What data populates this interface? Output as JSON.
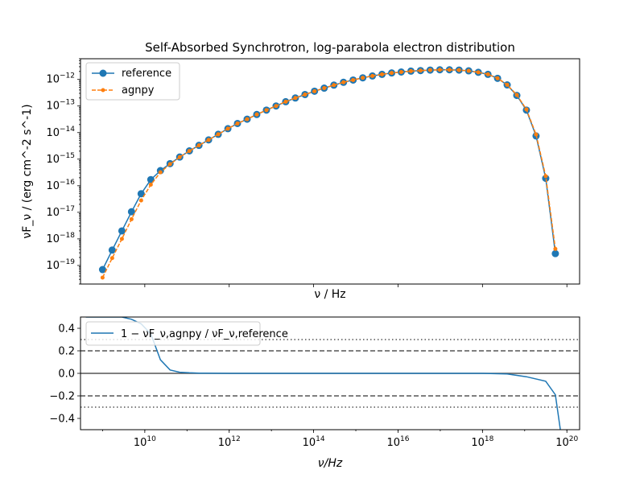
{
  "chart_data": [
    {
      "type": "line",
      "title": "Self-Absorbed Synchrotron, log-parabola electron distribution",
      "xlabel": "ν / Hz",
      "ylabel": "νF_ν / (erg cm^-2 s^-1)",
      "xscale": "log",
      "yscale": "log",
      "xlim": [
        300000000.0,
        2e+20
      ],
      "ylim": [
        2e-20,
        6e-12
      ],
      "grid": false,
      "legend_position": "upper-left",
      "x": [
        1000000000.0,
        1690000000.0,
        2870000000.0,
        4850000000.0,
        8200000000.0,
        13900000000.0,
        23500000000.0,
        39700000000.0,
        67200000000.0,
        114000000000.0,
        192000000000.0,
        325000000000.0,
        550000000000.0,
        931000000000.0,
        1570000000000.0,
        2660000000000.0,
        4500000000000.0,
        7620000000000.0,
        12900000000000.0,
        21800000000000.0,
        36900000000000.0,
        62400000000000.0,
        105000000000000.0,
        178000000000000.0,
        302000000000000.0,
        510000000000000.0,
        863000000000000.0,
        1460000000000000.0,
        2470000000000000.0,
        4170000000000000.0,
        7060000000000000.0,
        1.19e+16,
        2.02e+16,
        3.41e+16,
        5.77e+16,
        9.76e+16,
        1.65e+17,
        2.79e+17,
        4.71e+17,
        7.97e+17,
        1.35e+18,
        2.28e+18,
        3.85e+18,
        6.51e+18,
        1.1e+19,
        1.86e+19,
        3.15e+19,
        5.33e+19
      ],
      "series": [
        {
          "name": "reference",
          "color": "#1f77b4",
          "marker": "circle",
          "linestyle": "solid",
          "values": [
            7e-20,
            3.8e-19,
            2e-18,
            1.05e-17,
            5e-17,
            1.7e-16,
            3.7e-16,
            6.8e-16,
            1.2e-15,
            2.05e-15,
            3.3e-15,
            5.3e-15,
            8.6e-15,
            1.4e-14,
            2.2e-14,
            3.2e-14,
            4.8e-14,
            7e-14,
            1e-13,
            1.45e-13,
            2e-13,
            2.7e-13,
            3.6e-13,
            4.7e-13,
            6.1e-13,
            7.8e-13,
            9.5e-13,
            1.15e-12,
            1.35e-12,
            1.55e-12,
            1.75e-12,
            1.9e-12,
            2.05e-12,
            2.15e-12,
            2.25e-12,
            2.3e-12,
            2.3e-12,
            2.25e-12,
            2.1e-12,
            1.85e-12,
            1.55e-12,
            1.1e-12,
            6.2e-13,
            2.5e-13,
            7e-14,
            7.5e-15,
            1.9e-16,
            2.8e-19
          ]
        },
        {
          "name": "agnpy",
          "color": "#ff7f0e",
          "marker": "circle-small",
          "linestyle": "dashed",
          "values": [
            3.5e-20,
            1.9e-19,
            1e-18,
            5.5e-18,
            2.8e-17,
            1.1e-16,
            3.2e-16,
            6.5e-16,
            1.19e-15,
            2.04e-15,
            3.3e-15,
            5.3e-15,
            8.6e-15,
            1.4e-14,
            2.2e-14,
            3.2e-14,
            4.8e-14,
            7e-14,
            1e-13,
            1.45e-13,
            2e-13,
            2.7e-13,
            3.6e-13,
            4.7e-13,
            6.1e-13,
            7.8e-13,
            9.5e-13,
            1.15e-12,
            1.35e-12,
            1.55e-12,
            1.75e-12,
            1.9e-12,
            2.05e-12,
            2.15e-12,
            2.25e-12,
            2.3e-12,
            2.3e-12,
            2.25e-12,
            2.1e-12,
            1.85e-12,
            1.55e-12,
            1.11e-12,
            6.3e-13,
            2.6e-13,
            7.5e-14,
            8.5e-15,
            2.3e-16,
            4.2e-19
          ]
        }
      ]
    },
    {
      "type": "line",
      "title": "",
      "xlabel": "ν/Hz",
      "ylabel": "",
      "xscale": "log",
      "yscale": "linear",
      "xlim": [
        300000000.0,
        2e+20
      ],
      "ylim": [
        -0.5,
        0.5
      ],
      "yticks": [
        -0.4,
        -0.2,
        0.0,
        0.2,
        0.4
      ],
      "ytick_labels": [
        "−0.4",
        "−0.2",
        "0.0",
        "0.2",
        "0.4"
      ],
      "xtick_values": [
        10000000000.0,
        1000000000000.0,
        100000000000000.0,
        1e+16,
        1e+18,
        1e+20
      ],
      "xtick_labels": [
        {
          "base": "10",
          "exp": "10"
        },
        {
          "base": "10",
          "exp": "12"
        },
        {
          "base": "10",
          "exp": "14"
        },
        {
          "base": "10",
          "exp": "16"
        },
        {
          "base": "10",
          "exp": "18"
        },
        {
          "base": "10",
          "exp": "20"
        }
      ],
      "reference_lines": [
        {
          "y": 0.0,
          "style": "solid",
          "color": "#555555"
        },
        {
          "y": 0.2,
          "style": "dashed",
          "color": "#555555"
        },
        {
          "y": -0.2,
          "style": "dashed",
          "color": "#555555"
        },
        {
          "y": 0.3,
          "style": "dotted",
          "color": "#555555"
        },
        {
          "y": -0.3,
          "style": "dotted",
          "color": "#555555"
        }
      ],
      "legend_position": "upper-left",
      "series": [
        {
          "name": "1 − νF_ν,agnpy / νF_ν,reference",
          "color": "#1f77b4",
          "x": [
            400000000.0,
            1000000000.0,
            1690000000.0,
            2870000000.0,
            4850000000.0,
            8200000000.0,
            13900000000.0,
            23500000000.0,
            39700000000.0,
            67200000000.0,
            114000000000.0,
            192000000000.0,
            1000000000000.0,
            100000000000000.0,
            1e+16,
            1e+17,
            1e+18,
            3.85e+18,
            1.1e+19,
            3.15e+19,
            5.33e+19,
            7e+19
          ],
          "values": [
            0.5,
            0.5,
            0.5,
            0.5,
            0.48,
            0.44,
            0.35,
            0.12,
            0.03,
            0.01,
            0.005,
            0.002,
            0.0,
            0.0,
            0.0,
            0.0,
            0.0,
            -0.005,
            -0.03,
            -0.07,
            -0.19,
            -0.5
          ]
        }
      ]
    }
  ]
}
